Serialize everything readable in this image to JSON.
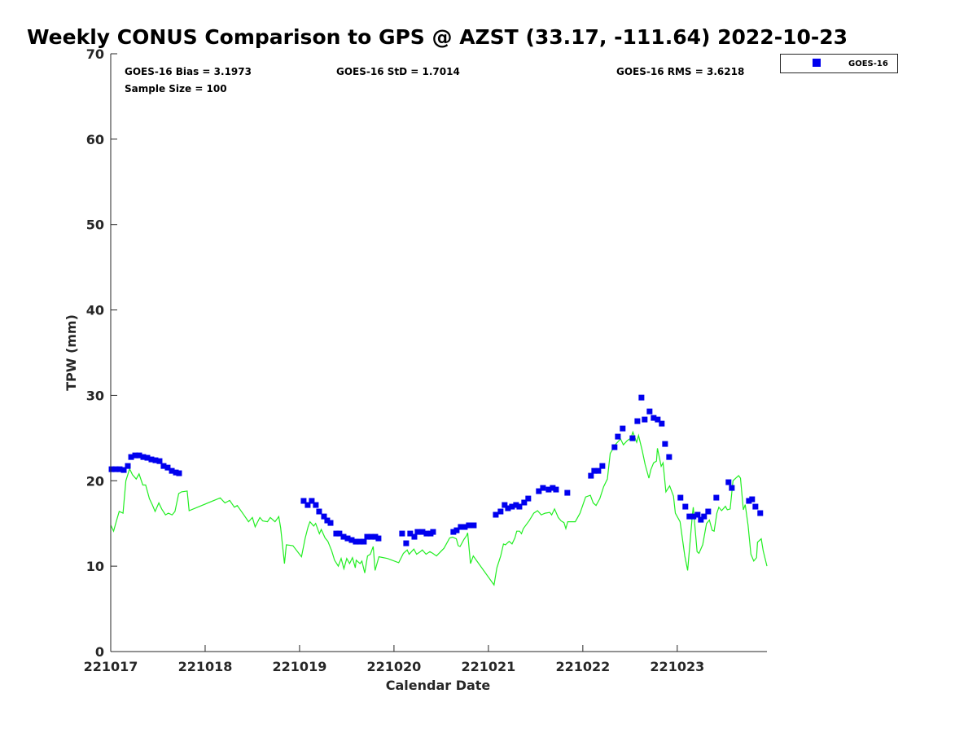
{
  "chart_data": {
    "type": "scatter",
    "title": "Weekly CONUS Comparison to GPS @ AZST (33.17, -111.64) 2022-10-23",
    "xlabel": "Calendar Date",
    "ylabel": "TPW (mm)",
    "x_unit": "days since 221017",
    "xlim": [
      0,
      6.95
    ],
    "ylim": [
      0,
      70
    ],
    "x_ticks": [
      0,
      1,
      2,
      3,
      4,
      5,
      6
    ],
    "x_tick_labels": [
      "221017",
      "221018",
      "221019",
      "221020",
      "221021",
      "221022",
      "221023"
    ],
    "y_ticks": [
      0,
      10,
      20,
      30,
      40,
      50,
      60,
      70
    ],
    "y_tick_labels": [
      "0",
      "10",
      "20",
      "30",
      "40",
      "50",
      "60",
      "70"
    ],
    "grid": false,
    "legend": {
      "placement": "top-right",
      "entries": [
        "GOES-16"
      ]
    },
    "stats": {
      "bias": "GOES-16 Bias = 3.1973",
      "std": "GOES-16 StD = 1.7014",
      "rms": "GOES-16 RMS = 3.6218",
      "sample": "Sample Size = 100"
    },
    "series": [
      {
        "name": "GOES-16",
        "kind": "scatter",
        "color": "#0000ee",
        "x": [
          0.009,
          0.052,
          0.095,
          0.138,
          0.181,
          0.216,
          0.259,
          0.302,
          0.345,
          0.388,
          0.431,
          0.474,
          0.517,
          0.56,
          0.603,
          0.647,
          0.69,
          0.724,
          2.043,
          2.086,
          2.129,
          2.172,
          2.207,
          2.259,
          2.293,
          2.328,
          2.388,
          2.422,
          2.466,
          2.509,
          2.552,
          2.595,
          2.638,
          2.681,
          2.716,
          2.759,
          2.802,
          2.836,
          3.086,
          3.129,
          3.172,
          3.216,
          3.25,
          3.302,
          3.345,
          3.388,
          3.414,
          3.629,
          3.664,
          3.707,
          3.75,
          3.793,
          3.845,
          4.078,
          4.129,
          4.172,
          4.207,
          4.25,
          4.293,
          4.328,
          4.379,
          4.422,
          4.534,
          4.578,
          4.638,
          4.681,
          4.716,
          4.836,
          5.086,
          5.121,
          5.164,
          5.207,
          5.336,
          5.371,
          5.422,
          5.526,
          5.578,
          5.621,
          5.655,
          5.707,
          5.75,
          5.793,
          5.836,
          5.871,
          5.914,
          6.034,
          6.086,
          6.129,
          6.172,
          6.216,
          6.25,
          6.284,
          6.328,
          6.414,
          6.543,
          6.578,
          6.759,
          6.793,
          6.828,
          6.879
        ],
        "y": [
          21.35,
          21.35,
          21.35,
          21.26,
          21.73,
          22.78,
          22.97,
          22.97,
          22.78,
          22.69,
          22.5,
          22.4,
          22.3,
          21.73,
          21.54,
          21.16,
          20.97,
          20.88,
          17.64,
          17.16,
          17.64,
          17.16,
          16.4,
          15.82,
          15.35,
          15.06,
          13.82,
          13.82,
          13.44,
          13.25,
          13.06,
          12.87,
          12.87,
          12.87,
          13.44,
          13.44,
          13.44,
          13.25,
          13.82,
          12.68,
          13.82,
          13.44,
          14.01,
          14.01,
          13.82,
          13.82,
          14.01,
          14.01,
          14.2,
          14.59,
          14.59,
          14.78,
          14.78,
          16.02,
          16.4,
          17.16,
          16.78,
          16.97,
          17.16,
          16.97,
          17.45,
          17.92,
          18.78,
          19.16,
          18.97,
          19.16,
          18.97,
          18.59,
          20.59,
          21.16,
          21.16,
          21.73,
          23.93,
          25.17,
          26.12,
          24.98,
          26.98,
          29.74,
          27.17,
          28.12,
          27.36,
          27.17,
          26.69,
          24.31,
          22.78,
          18.02,
          16.97,
          15.82,
          15.82,
          16.02,
          15.44,
          15.82,
          16.4,
          18.02,
          19.83,
          19.16,
          17.64,
          17.83,
          16.97,
          16.21
        ]
      },
      {
        "name": "GPS",
        "kind": "line",
        "color": "#22ee22",
        "x": [
          0.0,
          0.03,
          0.06,
          0.09,
          0.13,
          0.16,
          0.2,
          0.23,
          0.27,
          0.3,
          0.34,
          0.37,
          0.41,
          0.44,
          0.47,
          0.51,
          0.54,
          0.58,
          0.61,
          0.65,
          0.68,
          0.72,
          0.75,
          0.81,
          0.83,
          1.16,
          1.21,
          1.26,
          1.31,
          1.34,
          1.41,
          1.46,
          1.5,
          1.53,
          1.58,
          1.61,
          1.66,
          1.69,
          1.74,
          1.78,
          1.8,
          1.84,
          1.86,
          1.93,
          2.02,
          2.06,
          2.09,
          2.11,
          2.15,
          2.17,
          2.21,
          2.23,
          2.27,
          2.3,
          2.34,
          2.37,
          2.41,
          2.44,
          2.47,
          2.5,
          2.53,
          2.56,
          2.59,
          2.6,
          2.64,
          2.66,
          2.69,
          2.72,
          2.75,
          2.78,
          2.8,
          2.84,
          2.93,
          3.05,
          3.1,
          3.14,
          3.16,
          3.21,
          3.24,
          3.28,
          3.3,
          3.34,
          3.38,
          3.41,
          3.45,
          3.53,
          3.59,
          3.62,
          3.66,
          3.68,
          3.7,
          3.74,
          3.77,
          3.78,
          3.81,
          3.84,
          4.06,
          4.09,
          4.13,
          4.16,
          4.18,
          4.22,
          4.25,
          4.28,
          4.3,
          4.33,
          4.35,
          4.37,
          4.43,
          4.48,
          4.52,
          4.56,
          4.6,
          4.65,
          4.67,
          4.7,
          4.74,
          4.77,
          4.8,
          4.82,
          4.84,
          4.92,
          4.97,
          5.03,
          5.08,
          5.11,
          5.14,
          5.18,
          5.22,
          5.26,
          5.29,
          5.35,
          5.4,
          5.43,
          5.47,
          5.51,
          5.53,
          5.57,
          5.59,
          5.63,
          5.66,
          5.7,
          5.72,
          5.75,
          5.78,
          5.79,
          5.83,
          5.85,
          5.88,
          5.92,
          5.96,
          5.98,
          6.03,
          6.08,
          6.11,
          6.16,
          6.17,
          6.21,
          6.23,
          6.27,
          6.31,
          6.34,
          6.37,
          6.39,
          6.42,
          6.44,
          6.47,
          6.51,
          6.53,
          6.56,
          6.59,
          6.62,
          6.65,
          6.67,
          6.7,
          6.72,
          6.75,
          6.78,
          6.81,
          6.84,
          6.85,
          6.89,
          6.91,
          6.95
        ],
        "y": [
          14.8,
          14.1,
          15.3,
          16.4,
          16.2,
          20.0,
          21.4,
          20.7,
          20.2,
          20.8,
          19.5,
          19.5,
          17.9,
          17.2,
          16.4,
          17.4,
          16.7,
          16.0,
          16.2,
          16.0,
          16.4,
          18.5,
          18.7,
          18.8,
          16.5,
          18.0,
          17.4,
          17.7,
          16.9,
          17.1,
          16.0,
          15.2,
          15.7,
          14.6,
          15.7,
          15.3,
          15.2,
          15.7,
          15.2,
          15.8,
          14.5,
          10.3,
          12.5,
          12.4,
          11.1,
          13.3,
          14.6,
          15.2,
          14.7,
          15.0,
          13.8,
          14.3,
          13.3,
          12.9,
          11.8,
          10.7,
          10.0,
          10.9,
          9.7,
          10.9,
          10.3,
          11.0,
          9.8,
          10.7,
          10.3,
          10.6,
          9.2,
          11.2,
          11.4,
          12.3,
          9.5,
          11.1,
          10.9,
          10.4,
          11.5,
          11.9,
          11.4,
          12.0,
          11.4,
          11.7,
          11.9,
          11.4,
          11.7,
          11.5,
          11.2,
          12.1,
          13.3,
          13.4,
          13.2,
          12.4,
          12.3,
          13.1,
          13.6,
          13.9,
          10.3,
          11.2,
          7.8,
          9.8,
          11.2,
          12.6,
          12.5,
          12.9,
          12.6,
          13.3,
          14.1,
          14.1,
          13.8,
          14.4,
          15.3,
          16.2,
          16.5,
          16.0,
          16.2,
          16.3,
          16.0,
          16.7,
          15.7,
          15.3,
          15.1,
          14.4,
          15.2,
          15.2,
          16.2,
          18.1,
          18.3,
          17.4,
          17.1,
          17.9,
          19.3,
          20.2,
          23.2,
          24.3,
          24.9,
          24.2,
          24.7,
          25.0,
          25.7,
          24.5,
          25.3,
          23.5,
          21.9,
          20.3,
          21.3,
          22.1,
          22.3,
          23.8,
          21.7,
          22.1,
          18.7,
          19.4,
          18.2,
          16.2,
          15.2,
          11.2,
          9.5,
          16.0,
          16.9,
          11.7,
          11.5,
          12.5,
          15.0,
          15.4,
          14.2,
          14.1,
          16.2,
          16.9,
          16.5,
          17.0,
          16.6,
          16.7,
          20.0,
          20.3,
          20.6,
          20.3,
          16.6,
          17.2,
          14.8,
          11.4,
          10.6,
          11.0,
          12.8,
          13.2,
          11.8,
          10.0
        ]
      }
    ]
  }
}
